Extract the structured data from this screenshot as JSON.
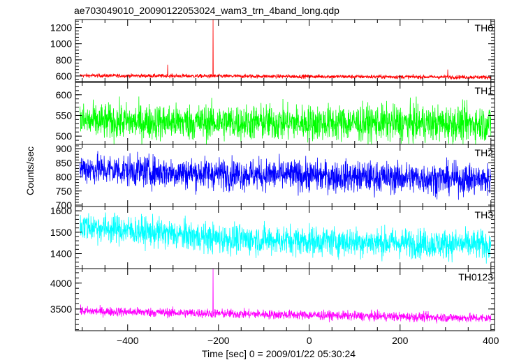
{
  "chart_data": {
    "type": "line",
    "title": "ae703049010_20090122053024_wam3_trn_4band_long.qdp",
    "xlabel": "Time [sec] 0 = 2009/01/22 05:30:24",
    "ylabel": "Counts/sec",
    "xlim": [
      -515,
      408
    ],
    "x_ticks": [
      -400,
      -200,
      0,
      200,
      400
    ],
    "x_tick_labels": [
      "−400",
      "−200",
      "0",
      "200",
      "400"
    ],
    "x_data_range": [
      -505,
      400
    ],
    "legend": "none",
    "grid": false,
    "panels": [
      {
        "name": "TH0",
        "color": "#ff0000",
        "ylim": [
          530,
          1300
        ],
        "y_ticks": [
          600,
          800,
          1000,
          1200
        ],
        "y_tick_labels": [
          "600",
          "800",
          "1000",
          "1200"
        ],
        "baseline": [
          [
            -505,
            605
          ],
          [
            400,
            585
          ]
        ],
        "noise": 12,
        "spikes": [
          {
            "x": -312,
            "y": 740
          },
          {
            "x": -212,
            "y": 1300
          },
          {
            "x": 305,
            "y": 680
          }
        ]
      },
      {
        "name": "TH1",
        "color": "#00ff00",
        "ylim": [
          480,
          630
        ],
        "y_ticks": [
          500,
          550,
          600
        ],
        "y_tick_labels": [
          "500",
          "550",
          "600"
        ],
        "baseline": [
          [
            -505,
            535
          ],
          [
            400,
            530
          ]
        ],
        "noise": 22,
        "spikes": []
      },
      {
        "name": "TH2",
        "color": "#0000ff",
        "ylim": [
          695,
          915
        ],
        "y_ticks": [
          700,
          750,
          800,
          850,
          900
        ],
        "y_tick_labels": [
          "700",
          "750",
          "800",
          "850",
          "900"
        ],
        "baseline": [
          [
            -505,
            830
          ],
          [
            -300,
            815
          ],
          [
            400,
            790
          ]
        ],
        "noise": 28,
        "spikes": []
      },
      {
        "name": "TH3",
        "color": "#00ffff",
        "ylim": [
          1330,
          1620
        ],
        "y_ticks": [
          1400,
          1500,
          1600
        ],
        "y_tick_labels": [
          "1400",
          "1500",
          "1600"
        ],
        "baseline": [
          [
            -505,
            1530
          ],
          [
            -200,
            1470
          ],
          [
            400,
            1440
          ]
        ],
        "noise": 35,
        "spikes": []
      },
      {
        "name": "TH0123",
        "color": "#ff00ff",
        "ylim": [
          3080,
          4280
        ],
        "y_ticks": [
          3500,
          4000
        ],
        "y_tick_labels": [
          "3500",
          "4000"
        ],
        "baseline": [
          [
            -505,
            3460
          ],
          [
            400,
            3320
          ]
        ],
        "noise": 45,
        "spikes": [
          {
            "x": -212,
            "y": 4280
          }
        ]
      }
    ]
  }
}
